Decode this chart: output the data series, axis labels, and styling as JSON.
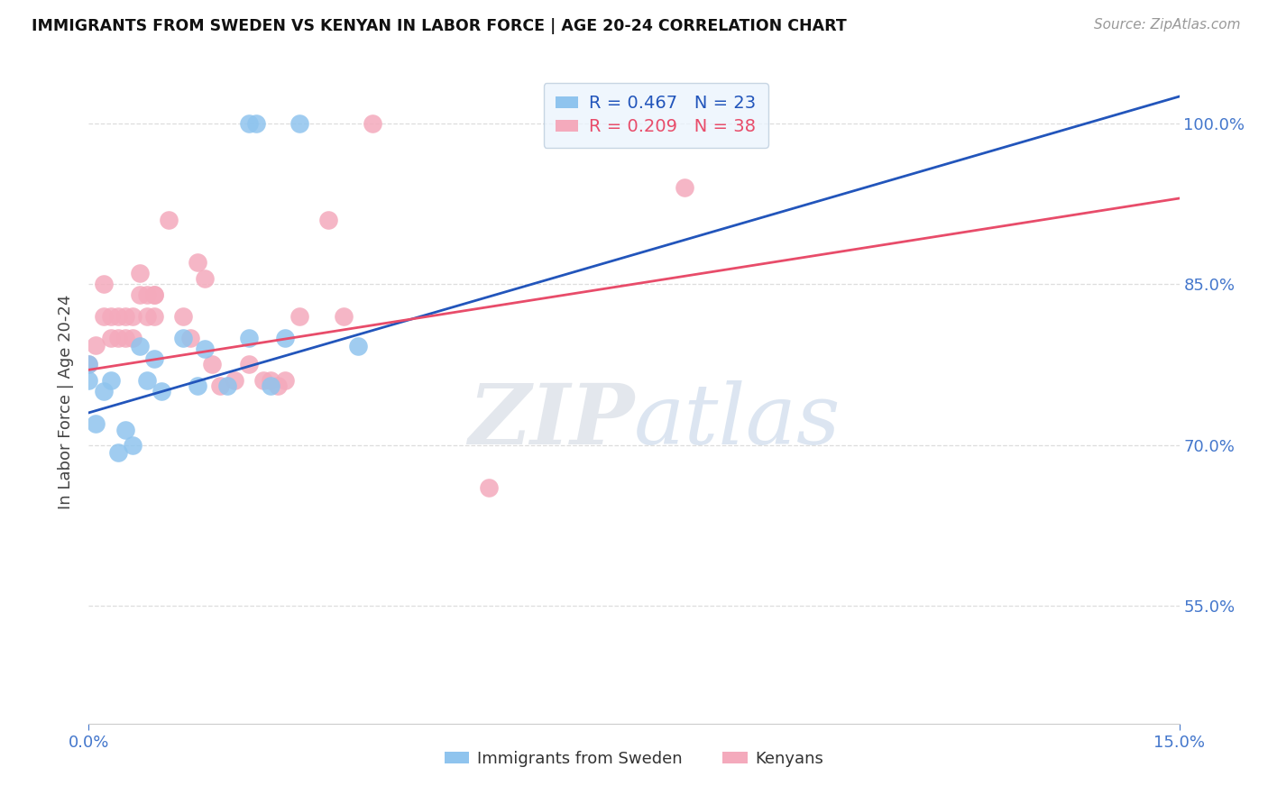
{
  "title": "IMMIGRANTS FROM SWEDEN VS KENYAN IN LABOR FORCE | AGE 20-24 CORRELATION CHART",
  "source": "Source: ZipAtlas.com",
  "ylabel_label": "In Labor Force | Age 20-24",
  "xmin": 0.0,
  "xmax": 0.15,
  "ymin": 0.44,
  "ymax": 1.04,
  "yticks": [
    0.55,
    0.7,
    0.85,
    1.0
  ],
  "ytick_labels": [
    "55.0%",
    "70.0%",
    "85.0%",
    "100.0%"
  ],
  "xtick_labels": [
    "0.0%",
    "15.0%"
  ],
  "sweden_R": 0.467,
  "sweden_N": 23,
  "kenya_R": 0.209,
  "kenya_N": 38,
  "sweden_color": "#8FC4EE",
  "kenya_color": "#F4AABC",
  "trendline_sweden_color": "#2255BB",
  "trendline_kenya_color": "#E84C6A",
  "sweden_x": [
    0.0,
    0.0,
    0.001,
    0.002,
    0.003,
    0.004,
    0.005,
    0.006,
    0.007,
    0.008,
    0.009,
    0.01,
    0.013,
    0.015,
    0.016,
    0.019,
    0.022,
    0.022,
    0.023,
    0.025,
    0.027,
    0.029,
    0.037
  ],
  "sweden_y": [
    0.775,
    0.76,
    0.72,
    0.75,
    0.76,
    0.693,
    0.714,
    0.7,
    0.792,
    0.76,
    0.78,
    0.75,
    0.8,
    0.755,
    0.79,
    0.755,
    0.8,
    1.0,
    1.0,
    0.755,
    0.8,
    1.0,
    0.792
  ],
  "kenya_x": [
    0.0,
    0.001,
    0.002,
    0.002,
    0.003,
    0.003,
    0.004,
    0.004,
    0.005,
    0.005,
    0.006,
    0.006,
    0.007,
    0.007,
    0.008,
    0.008,
    0.009,
    0.009,
    0.009,
    0.011,
    0.013,
    0.014,
    0.015,
    0.016,
    0.017,
    0.018,
    0.02,
    0.022,
    0.024,
    0.025,
    0.026,
    0.027,
    0.029,
    0.033,
    0.035,
    0.039,
    0.055,
    0.082
  ],
  "kenya_y": [
    0.775,
    0.793,
    0.82,
    0.85,
    0.8,
    0.82,
    0.8,
    0.82,
    0.8,
    0.82,
    0.8,
    0.82,
    0.84,
    0.86,
    0.84,
    0.82,
    0.84,
    0.82,
    0.84,
    0.91,
    0.82,
    0.8,
    0.87,
    0.855,
    0.775,
    0.755,
    0.76,
    0.775,
    0.76,
    0.76,
    0.755,
    0.76,
    0.82,
    0.91,
    0.82,
    1.0,
    0.66,
    0.94
  ],
  "watermark_zip_color": "#C8D0DC",
  "watermark_atlas_color": "#A8C0DC",
  "background_color": "#FFFFFF",
  "grid_color": "#DDDDDD",
  "axis_tick_color": "#4477CC",
  "title_color": "#111111",
  "source_color": "#999999",
  "legend_bg_color": "#EBF4FD",
  "legend_border_color": "#BBCCDD"
}
